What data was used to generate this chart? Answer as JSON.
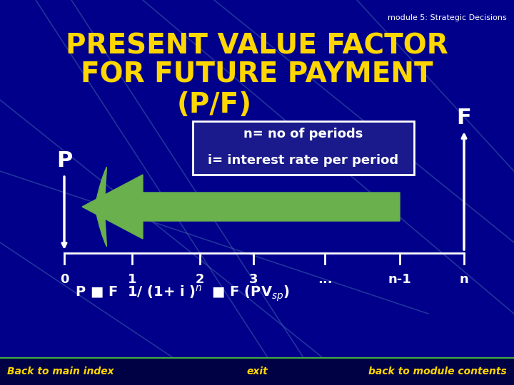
{
  "bg_color": "#00008B",
  "bg_color_dark": "#00006B",
  "title_line1": "PRESENT VALUE FACTOR",
  "title_line2": "FOR FUTURE PAYMENT",
  "title_line3": "(P/F)",
  "title_color": "#FFD700",
  "module_text": "module 5: Strategic Decisions",
  "module_color": "#FFFFFF",
  "label_P": "P",
  "label_F": "F",
  "label_color": "#FFFFFF",
  "tick_labels": [
    "0",
    "1",
    "2",
    "3",
    "...",
    "n-1",
    "n"
  ],
  "tick_color": "#FFFFFF",
  "axis_color": "#FFFFFF",
  "arrow_color": "#6AB04C",
  "box_text1": "n= no of periods",
  "box_text2": "i= interest rate per period",
  "box_bg": "#1A1A8C",
  "box_border": "#FFFFFF",
  "formula_text": "P = F  1/ (1+ i )",
  "formula_sup": "n",
  "formula_end": " = F (PV",
  "formula_sub": "sp",
  "formula_close": ")",
  "formula_color": "#FFFFFF",
  "footer_left": "Back to main index",
  "footer_center": "exit",
  "footer_right": "back to module contents",
  "footer_color": "#FFD700",
  "footer_bg": "#000066",
  "diagonal_color": "#4466AA"
}
